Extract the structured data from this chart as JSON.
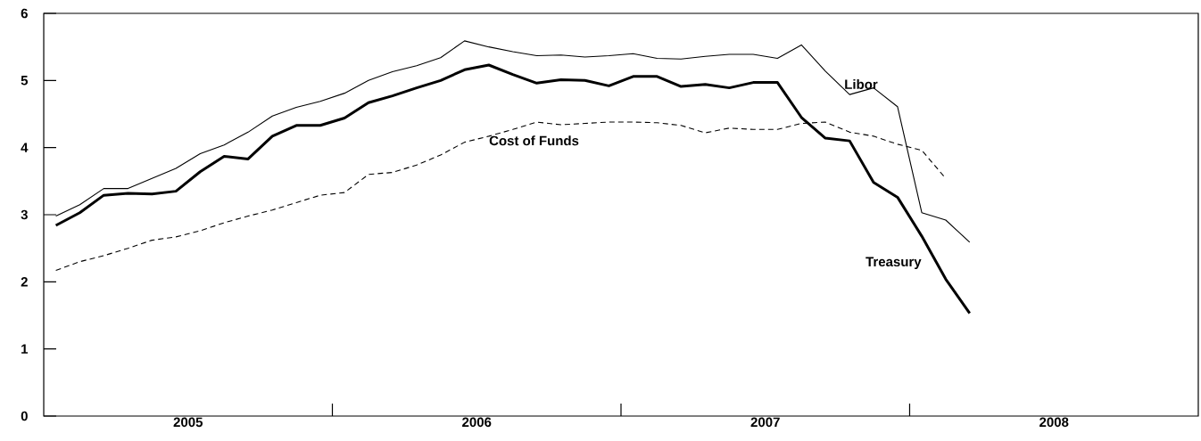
{
  "chart_data": {
    "type": "line",
    "x": [
      2005.042,
      2005.125,
      2005.208,
      2005.292,
      2005.375,
      2005.458,
      2005.542,
      2005.625,
      2005.708,
      2005.792,
      2005.875,
      2005.958,
      2006.042,
      2006.125,
      2006.208,
      2006.292,
      2006.375,
      2006.458,
      2006.542,
      2006.625,
      2006.708,
      2006.792,
      2006.875,
      2006.958,
      2007.042,
      2007.125,
      2007.208,
      2007.292,
      2007.375,
      2007.458,
      2007.542,
      2007.625,
      2007.708,
      2007.792,
      2007.875,
      2007.958,
      2008.042,
      2008.125,
      2008.208
    ],
    "series": [
      {
        "name": "Libor",
        "color": "#000000",
        "line_style": "solid",
        "values": [
          2.98,
          3.15,
          3.39,
          3.39,
          3.54,
          3.69,
          3.91,
          4.04,
          4.23,
          4.47,
          4.6,
          4.69,
          4.81,
          5.0,
          5.13,
          5.22,
          5.34,
          5.59,
          5.5,
          5.43,
          5.37,
          5.38,
          5.35,
          5.37,
          5.4,
          5.33,
          5.32,
          5.36,
          5.39,
          5.39,
          5.33,
          5.53,
          5.14,
          4.79,
          4.89,
          4.61,
          3.03,
          2.92,
          2.59
        ]
      },
      {
        "name": "Treasury",
        "color": "#000000",
        "line_style": "solid",
        "values": [
          2.84,
          3.03,
          3.29,
          3.32,
          3.31,
          3.35,
          3.64,
          3.87,
          3.83,
          4.17,
          4.33,
          4.33,
          4.44,
          4.67,
          4.77,
          4.89,
          5.0,
          5.16,
          5.23,
          5.09,
          4.96,
          5.01,
          5.0,
          4.92,
          5.06,
          5.06,
          4.91,
          4.94,
          4.89,
          4.97,
          4.97,
          4.45,
          4.14,
          4.1,
          3.48,
          3.26,
          2.68,
          2.04,
          1.53
        ]
      },
      {
        "name": "Cost of Funds",
        "color": "#000000",
        "line_style": "dashed",
        "values": [
          2.17,
          2.3,
          2.39,
          2.5,
          2.62,
          2.67,
          2.76,
          2.88,
          2.98,
          3.07,
          3.18,
          3.29,
          3.33,
          3.6,
          3.63,
          3.74,
          3.89,
          4.08,
          4.17,
          4.27,
          4.38,
          4.34,
          4.36,
          4.38,
          4.38,
          4.37,
          4.33,
          4.22,
          4.29,
          4.27,
          4.27,
          4.36,
          4.38,
          4.23,
          4.17,
          4.05,
          3.96,
          3.54,
          null
        ]
      }
    ],
    "xlim": [
      2005,
      2009
    ],
    "xticks": [
      {
        "value": 2006,
        "label": null
      },
      {
        "value": 2007,
        "label": null
      },
      {
        "value": 2008,
        "label": null
      },
      {
        "value": 2005.5,
        "label": "2005"
      },
      {
        "value": 2006.5,
        "label": "2006"
      },
      {
        "value": 2007.5,
        "label": "2007"
      },
      {
        "value": 2008.5,
        "label": "2008"
      }
    ],
    "ylim": [
      0,
      6
    ],
    "yticks": [
      0,
      1,
      2,
      3,
      4,
      5,
      6
    ],
    "grid": false,
    "marker": "none"
  }
}
